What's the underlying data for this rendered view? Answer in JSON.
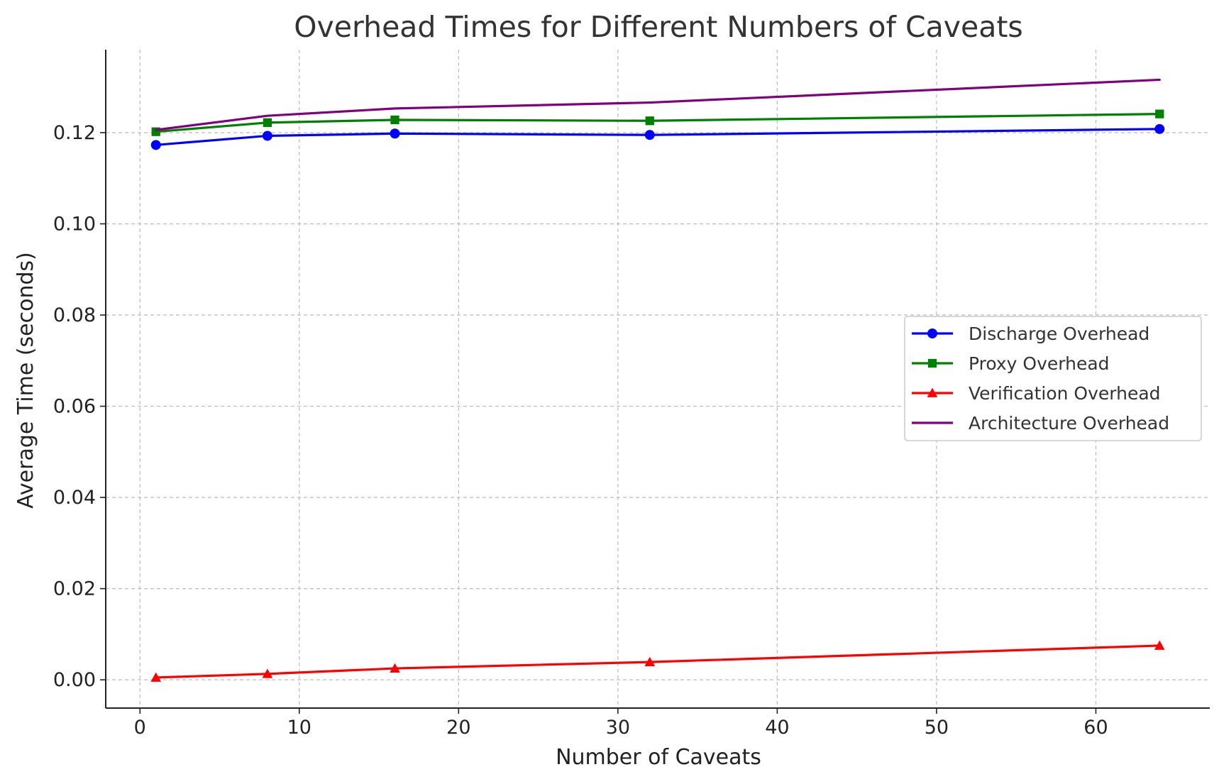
{
  "chart_data": {
    "type": "line",
    "title": "Overhead Times for Different Numbers of Caveats",
    "xlabel": "Number of Caveats",
    "ylabel": "Average Time (seconds)",
    "x": [
      1,
      8,
      16,
      32,
      64
    ],
    "xlim": [
      -2.15,
      67.15
    ],
    "ylim": [
      -0.0062,
      0.1382
    ],
    "xticks": [
      0,
      10,
      20,
      30,
      40,
      50,
      60
    ],
    "xtick_labels": [
      "0",
      "10",
      "20",
      "30",
      "40",
      "50",
      "60"
    ],
    "yticks": [
      0.0,
      0.02,
      0.04,
      0.06,
      0.08,
      0.1,
      0.12
    ],
    "ytick_labels": [
      "0.00",
      "0.02",
      "0.04",
      "0.06",
      "0.08",
      "0.10",
      "0.12"
    ],
    "grid": true,
    "legend_position": "center-right",
    "series": [
      {
        "name": "Discharge Overhead",
        "color": "#0000ff",
        "marker": "circle",
        "values": [
          0.1173,
          0.1193,
          0.1198,
          0.1195,
          0.1208
        ]
      },
      {
        "name": "Proxy Overhead",
        "color": "#008000",
        "marker": "square",
        "values": [
          0.1202,
          0.1222,
          0.1228,
          0.1226,
          0.1241
        ]
      },
      {
        "name": "Verification Overhead",
        "color": "#ff0000",
        "marker": "triangle",
        "values": [
          0.0005,
          0.0013,
          0.0025,
          0.0039,
          0.0075
        ]
      },
      {
        "name": "Architecture Overhead",
        "color": "#800080",
        "marker": "none",
        "values": [
          0.1206,
          0.1237,
          0.1253,
          0.1266,
          0.1316
        ]
      }
    ]
  }
}
